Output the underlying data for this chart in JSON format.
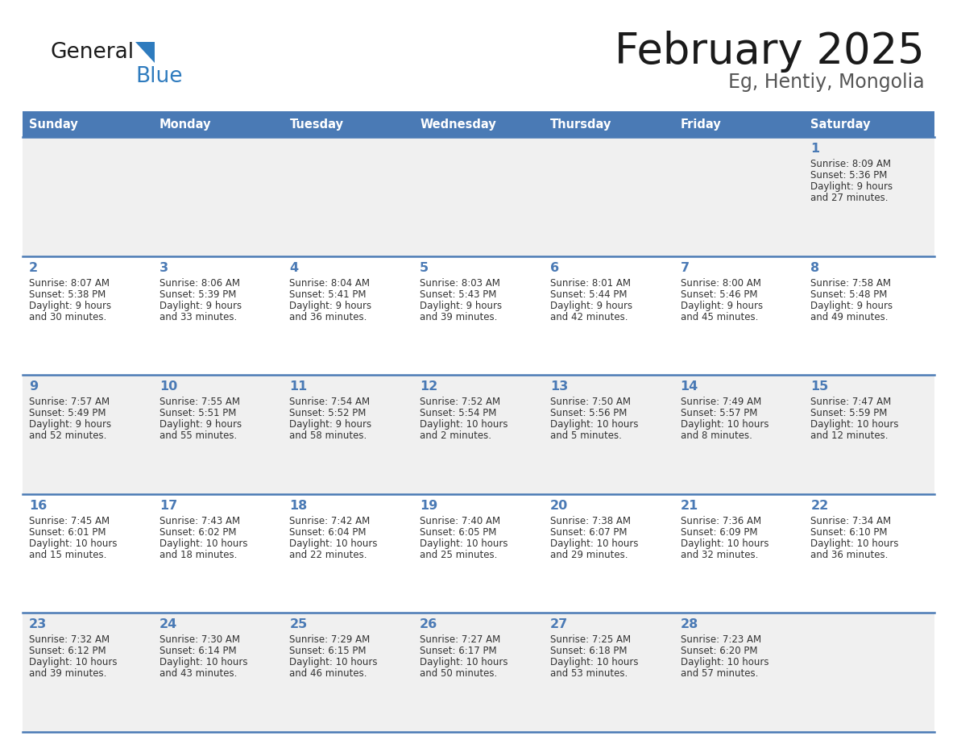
{
  "title": "February 2025",
  "subtitle": "Eg, Hentiy, Mongolia",
  "days_of_week": [
    "Sunday",
    "Monday",
    "Tuesday",
    "Wednesday",
    "Thursday",
    "Friday",
    "Saturday"
  ],
  "header_bg_color": "#4a7ab5",
  "header_text_color": "#ffffff",
  "cell_bg_odd": "#f0f0f0",
  "cell_bg_even": "#ffffff",
  "border_color": "#4a7ab5",
  "day_number_color": "#4a7ab5",
  "text_color": "#333333",
  "title_color": "#1a1a1a",
  "logo_black": "#1a1a1a",
  "logo_blue": "#2e7bbe",
  "calendar_data": [
    [
      {
        "day": null,
        "sunrise": null,
        "sunset": null,
        "daylight": null
      },
      {
        "day": null,
        "sunrise": null,
        "sunset": null,
        "daylight": null
      },
      {
        "day": null,
        "sunrise": null,
        "sunset": null,
        "daylight": null
      },
      {
        "day": null,
        "sunrise": null,
        "sunset": null,
        "daylight": null
      },
      {
        "day": null,
        "sunrise": null,
        "sunset": null,
        "daylight": null
      },
      {
        "day": null,
        "sunrise": null,
        "sunset": null,
        "daylight": null
      },
      {
        "day": 1,
        "sunrise": "8:09 AM",
        "sunset": "5:36 PM",
        "daylight": "9 hours\nand 27 minutes."
      }
    ],
    [
      {
        "day": 2,
        "sunrise": "8:07 AM",
        "sunset": "5:38 PM",
        "daylight": "9 hours\nand 30 minutes."
      },
      {
        "day": 3,
        "sunrise": "8:06 AM",
        "sunset": "5:39 PM",
        "daylight": "9 hours\nand 33 minutes."
      },
      {
        "day": 4,
        "sunrise": "8:04 AM",
        "sunset": "5:41 PM",
        "daylight": "9 hours\nand 36 minutes."
      },
      {
        "day": 5,
        "sunrise": "8:03 AM",
        "sunset": "5:43 PM",
        "daylight": "9 hours\nand 39 minutes."
      },
      {
        "day": 6,
        "sunrise": "8:01 AM",
        "sunset": "5:44 PM",
        "daylight": "9 hours\nand 42 minutes."
      },
      {
        "day": 7,
        "sunrise": "8:00 AM",
        "sunset": "5:46 PM",
        "daylight": "9 hours\nand 45 minutes."
      },
      {
        "day": 8,
        "sunrise": "7:58 AM",
        "sunset": "5:48 PM",
        "daylight": "9 hours\nand 49 minutes."
      }
    ],
    [
      {
        "day": 9,
        "sunrise": "7:57 AM",
        "sunset": "5:49 PM",
        "daylight": "9 hours\nand 52 minutes."
      },
      {
        "day": 10,
        "sunrise": "7:55 AM",
        "sunset": "5:51 PM",
        "daylight": "9 hours\nand 55 minutes."
      },
      {
        "day": 11,
        "sunrise": "7:54 AM",
        "sunset": "5:52 PM",
        "daylight": "9 hours\nand 58 minutes."
      },
      {
        "day": 12,
        "sunrise": "7:52 AM",
        "sunset": "5:54 PM",
        "daylight": "10 hours\nand 2 minutes."
      },
      {
        "day": 13,
        "sunrise": "7:50 AM",
        "sunset": "5:56 PM",
        "daylight": "10 hours\nand 5 minutes."
      },
      {
        "day": 14,
        "sunrise": "7:49 AM",
        "sunset": "5:57 PM",
        "daylight": "10 hours\nand 8 minutes."
      },
      {
        "day": 15,
        "sunrise": "7:47 AM",
        "sunset": "5:59 PM",
        "daylight": "10 hours\nand 12 minutes."
      }
    ],
    [
      {
        "day": 16,
        "sunrise": "7:45 AM",
        "sunset": "6:01 PM",
        "daylight": "10 hours\nand 15 minutes."
      },
      {
        "day": 17,
        "sunrise": "7:43 AM",
        "sunset": "6:02 PM",
        "daylight": "10 hours\nand 18 minutes."
      },
      {
        "day": 18,
        "sunrise": "7:42 AM",
        "sunset": "6:04 PM",
        "daylight": "10 hours\nand 22 minutes."
      },
      {
        "day": 19,
        "sunrise": "7:40 AM",
        "sunset": "6:05 PM",
        "daylight": "10 hours\nand 25 minutes."
      },
      {
        "day": 20,
        "sunrise": "7:38 AM",
        "sunset": "6:07 PM",
        "daylight": "10 hours\nand 29 minutes."
      },
      {
        "day": 21,
        "sunrise": "7:36 AM",
        "sunset": "6:09 PM",
        "daylight": "10 hours\nand 32 minutes."
      },
      {
        "day": 22,
        "sunrise": "7:34 AM",
        "sunset": "6:10 PM",
        "daylight": "10 hours\nand 36 minutes."
      }
    ],
    [
      {
        "day": 23,
        "sunrise": "7:32 AM",
        "sunset": "6:12 PM",
        "daylight": "10 hours\nand 39 minutes."
      },
      {
        "day": 24,
        "sunrise": "7:30 AM",
        "sunset": "6:14 PM",
        "daylight": "10 hours\nand 43 minutes."
      },
      {
        "day": 25,
        "sunrise": "7:29 AM",
        "sunset": "6:15 PM",
        "daylight": "10 hours\nand 46 minutes."
      },
      {
        "day": 26,
        "sunrise": "7:27 AM",
        "sunset": "6:17 PM",
        "daylight": "10 hours\nand 50 minutes."
      },
      {
        "day": 27,
        "sunrise": "7:25 AM",
        "sunset": "6:18 PM",
        "daylight": "10 hours\nand 53 minutes."
      },
      {
        "day": 28,
        "sunrise": "7:23 AM",
        "sunset": "6:20 PM",
        "daylight": "10 hours\nand 57 minutes."
      },
      {
        "day": null,
        "sunrise": null,
        "sunset": null,
        "daylight": null
      }
    ]
  ]
}
